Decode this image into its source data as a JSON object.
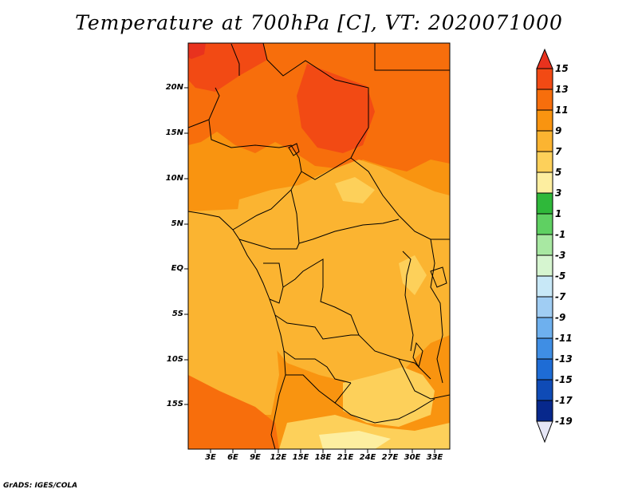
{
  "title": "Temperature at 700hPa [C], VT: 2020071000",
  "credit": "GrADS: IGES/COLA",
  "map": {
    "region": "Central Africa",
    "lon_range": [
      0,
      35
    ],
    "lat_range": [
      -20,
      25
    ],
    "y_axis_labels": [
      "20N",
      "15N",
      "10N",
      "5N",
      "EQ",
      "5S",
      "10S",
      "15S"
    ],
    "x_axis_labels": [
      "3E",
      "6E",
      "9E",
      "12E",
      "15E",
      "18E",
      "21E",
      "24E",
      "27E",
      "30E",
      "33E"
    ]
  },
  "colorbar": {
    "labels": [
      "15",
      "13",
      "11",
      "9",
      "7",
      "5",
      "3",
      "1",
      "-1",
      "-3",
      "-5",
      "-7",
      "-9",
      "-11",
      "-13",
      "-15",
      "-17",
      "-19"
    ],
    "colors": [
      "#e8321e",
      "#f24a14",
      "#f76e0c",
      "#f99410",
      "#fbb431",
      "#fdd05a",
      "#fdeea0",
      "#2fb83a",
      "#5fd062",
      "#a8e8a2",
      "#d6f5d0",
      "#c8e8f7",
      "#a0cdf3",
      "#6eb0ee",
      "#3f8ee4",
      "#1e6cd5",
      "#0f4bb6",
      "#07288c",
      "#050a5a",
      "#e6e6f6"
    ]
  }
}
